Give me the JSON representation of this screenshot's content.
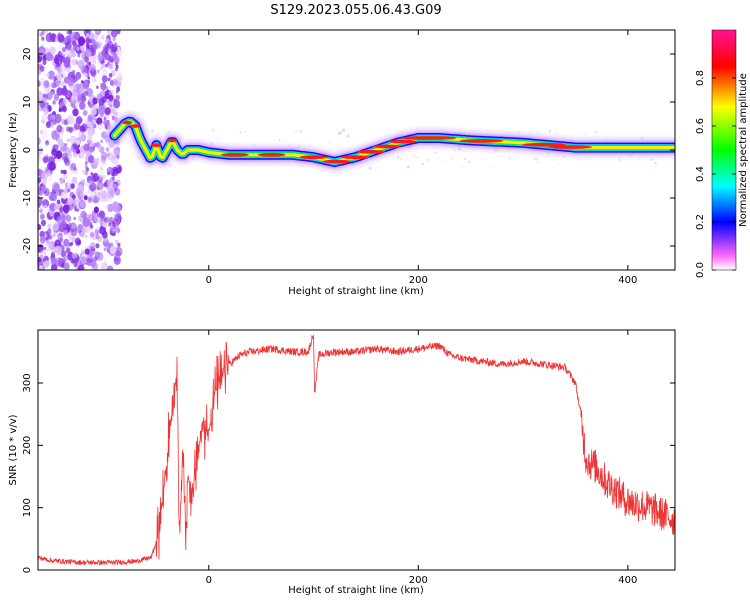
{
  "title": "S129.2023.055.06.43.G09",
  "chart_data": [
    {
      "type": "heatmap",
      "xlabel": "Height of straight line (km)",
      "ylabel": "Frequency (Hz)",
      "xlim": [
        -163,
        445
      ],
      "ylim": [
        -25,
        25
      ],
      "xticks": [
        0,
        200,
        400
      ],
      "yticks": [
        -20,
        -10,
        0,
        10,
        20
      ],
      "colorbar": {
        "label": "Normalized spectral amplitude",
        "range": [
          0,
          1
        ],
        "ticks": [
          0.0,
          0.2,
          0.4,
          0.6,
          0.8
        ],
        "colormap": [
          "#ffffff",
          "#ff00ff",
          "#0000ff",
          "#00ffff",
          "#00ff00",
          "#ffff00",
          "#ff0000",
          "#ff1493"
        ]
      },
      "ridge": {
        "x": [
          -90,
          -80,
          -75,
          -70,
          -65,
          -60,
          -55,
          -50,
          -45,
          -40,
          -35,
          -30,
          -25,
          -20,
          -10,
          0,
          20,
          40,
          60,
          80,
          100,
          120,
          140,
          160,
          180,
          200,
          220,
          250,
          300,
          350,
          400,
          445
        ],
        "y": [
          3,
          5.5,
          6,
          5,
          2,
          0,
          -2,
          1,
          -2,
          0,
          2,
          0,
          -1,
          0,
          0,
          -0.5,
          -1,
          -1,
          -1,
          -1,
          -1.5,
          -2.5,
          -1.5,
          0,
          1.5,
          2.5,
          2.5,
          2,
          1.5,
          0.5,
          0.5,
          0.5
        ]
      },
      "noise_region_x": [
        -163,
        -85
      ]
    },
    {
      "type": "line",
      "xlabel": "Height of straight line (km)",
      "ylabel": "SNR (10 * v/v)",
      "xlim": [
        -163,
        445
      ],
      "ylim": [
        0,
        385
      ],
      "xticks": [
        0,
        200,
        400
      ],
      "yticks": [
        0,
        100,
        200,
        300
      ],
      "color": "#ee3333",
      "series": [
        {
          "x": [
            -163,
            -150,
            -120,
            -90,
            -70,
            -55,
            -50,
            -45,
            -40,
            -35,
            -32,
            -30,
            -28,
            -25,
            -22,
            -20,
            -15,
            -10,
            -5,
            0,
            5,
            10,
            15,
            20,
            30,
            40,
            60,
            80,
            95,
            100,
            101,
            105,
            120,
            140,
            160,
            180,
            200,
            220,
            230,
            240,
            260,
            280,
            300,
            320,
            340,
            350,
            355,
            360,
            365,
            370,
            380,
            390,
            400,
            420,
            445
          ],
          "y": [
            20,
            15,
            12,
            12,
            14,
            20,
            45,
            100,
            180,
            250,
            300,
            280,
            50,
            200,
            60,
            150,
            120,
            200,
            230,
            220,
            280,
            300,
            320,
            330,
            345,
            350,
            355,
            350,
            350,
            380,
            280,
            345,
            350,
            350,
            355,
            350,
            355,
            360,
            345,
            340,
            335,
            330,
            335,
            330,
            325,
            300,
            250,
            180,
            170,
            165,
            140,
            125,
            110,
            100,
            80
          ]
        }
      ]
    }
  ]
}
